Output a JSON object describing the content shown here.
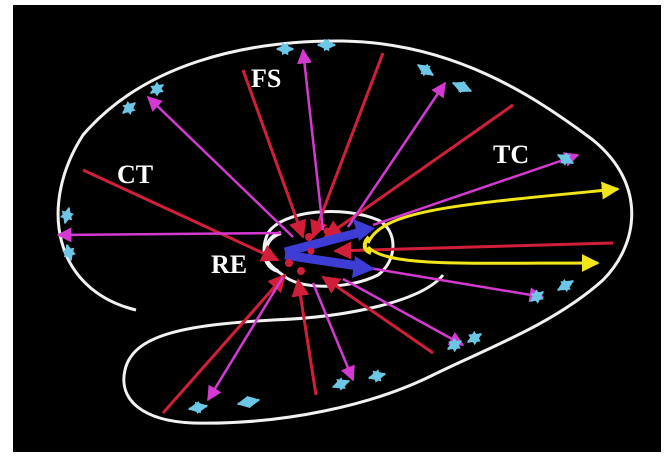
{
  "labels": {
    "fs": "FS",
    "tc": "TC",
    "ct": "CT",
    "re": "RE"
  },
  "colors": {
    "background": "#000000",
    "outline": "#f2f2f2",
    "red_lines": "#d11f3a",
    "magenta_lines": "#d43ad1",
    "yellow_lines": "#f2e51a",
    "blue_arrows": "#3d3dd6",
    "cyan_arrows": "#6cc6e6"
  }
}
